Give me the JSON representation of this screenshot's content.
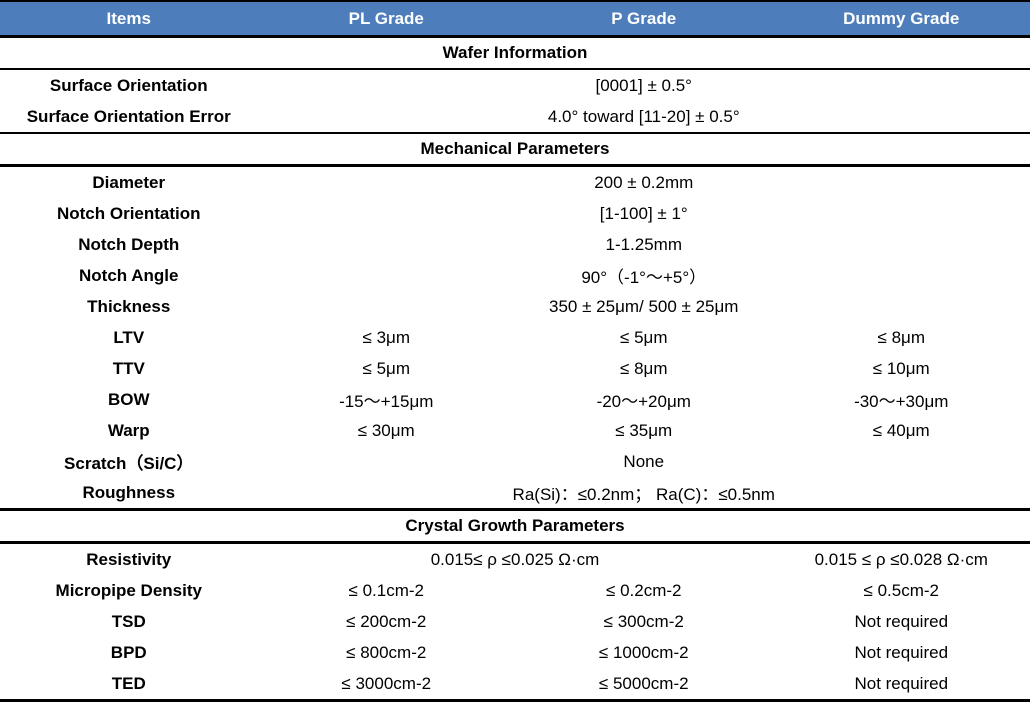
{
  "table": {
    "accent_color": "#4D7EBB",
    "text_color": "#000000",
    "header_text_color": "#ffffff",
    "columns": [
      "Items",
      "PL Grade",
      "P Grade",
      "Dummy Grade"
    ],
    "sections": [
      {
        "title": "Wafer Information",
        "rows": [
          {
            "label": "Surface Orientation",
            "value": "[0001] ± 0.5°"
          },
          {
            "label": "Surface Orientation Error",
            "value": "4.0° toward [11-20] ± 0.5°"
          }
        ]
      },
      {
        "title": "Mechanical Parameters",
        "rows": [
          {
            "label": "Diameter",
            "value": "200 ± 0.2mm"
          },
          {
            "label": "Notch Orientation",
            "value": "[1-100] ± 1°"
          },
          {
            "label": "Notch Depth",
            "value": "1-1.25mm"
          },
          {
            "label": "Notch Angle",
            "value": "90°（-1°～+5°）"
          },
          {
            "label": "Thickness",
            "value": "350 ± 25μm/ 500 ± 25μm"
          },
          {
            "label": "LTV",
            "values": [
              "≤ 3μm",
              "≤ 5μm",
              "≤ 8μm"
            ]
          },
          {
            "label": "TTV",
            "values": [
              "≤ 5μm",
              "≤ 8μm",
              "≤ 10μm"
            ]
          },
          {
            "label": "BOW",
            "values": [
              "-15～+15μm",
              "-20～+20μm",
              "-30～+30μm"
            ]
          },
          {
            "label": "Warp",
            "values": [
              "≤ 30μm",
              "≤ 35μm",
              "≤ 40μm"
            ]
          },
          {
            "label": "Scratch（Si/C）",
            "value": "None"
          },
          {
            "label": "Roughness",
            "value": "Ra(Si)：≤0.2nm； Ra(C)：≤0.5nm"
          }
        ]
      },
      {
        "title": "Crystal Growth Parameters",
        "rows": [
          {
            "label": "Resistivity",
            "value_pl_p": "0.015≤ ρ ≤0.025 Ω·cm",
            "value_dummy": "0.015 ≤ ρ ≤0.028 Ω·cm"
          },
          {
            "label": "Micropipe Density",
            "values": [
              "≤ 0.1cm-2",
              "≤ 0.2cm-2",
              "≤ 0.5cm-2"
            ]
          },
          {
            "label": "TSD",
            "values": [
              "≤ 200cm-2",
              "≤ 300cm-2",
              "Not required"
            ]
          },
          {
            "label": "BPD",
            "values": [
              "≤ 800cm-2",
              "≤ 1000cm-2",
              "Not required"
            ]
          },
          {
            "label": "TED",
            "values": [
              "≤ 3000cm-2",
              "≤ 5000cm-2",
              "Not required"
            ]
          }
        ]
      }
    ]
  }
}
